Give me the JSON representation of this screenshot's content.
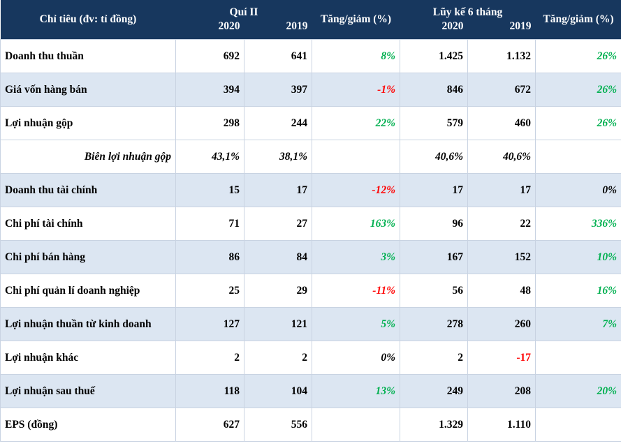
{
  "header": {
    "indicator": "Chỉ tiêu (đv: tỉ đồng)",
    "quarter_group": "Quí II",
    "ytd_group": "Lũy kế 6 tháng",
    "change": "Tăng/giảm (%)",
    "y2020": "2020",
    "y2019": "2019"
  },
  "rows": [
    {
      "label": "Doanh thu thuần",
      "q2020": "692",
      "q2019": "641",
      "qchg": "8%",
      "h2020": "1.425",
      "h2019": "1.132",
      "hchg": "26%"
    },
    {
      "label": "Giá vốn hàng bán",
      "q2020": "394",
      "q2019": "397",
      "qchg": "-1%",
      "h2020": "846",
      "h2019": "672",
      "hchg": "26%"
    },
    {
      "label": "Lợi nhuận gộp",
      "q2020": "298",
      "q2019": "244",
      "qchg": "22%",
      "h2020": "579",
      "h2019": "460",
      "hchg": "26%"
    },
    {
      "label": "Biên lợi nhuận gộp",
      "q2020": "43,1%",
      "q2019": "38,1%",
      "qchg": "",
      "h2020": "40,6%",
      "h2019": "40,6%",
      "hchg": ""
    },
    {
      "label": "Doanh thu tài chính",
      "q2020": "15",
      "q2019": "17",
      "qchg": "-12%",
      "h2020": "17",
      "h2019": "17",
      "hchg": "0%"
    },
    {
      "label": "Chi phí tài chính",
      "q2020": "71",
      "q2019": "27",
      "qchg": "163%",
      "h2020": "96",
      "h2019": "22",
      "hchg": "336%"
    },
    {
      "label": "Chi phí bán hàng",
      "q2020": "86",
      "q2019": "84",
      "qchg": "3%",
      "h2020": "167",
      "h2019": "152",
      "hchg": "10%"
    },
    {
      "label": "Chi phí quản lí doanh nghiệp",
      "q2020": "25",
      "q2019": "29",
      "qchg": "-11%",
      "h2020": "56",
      "h2019": "48",
      "hchg": "16%"
    },
    {
      "label": "Lợi nhuận thuần từ kinh doanh",
      "q2020": "127",
      "q2019": "121",
      "qchg": "5%",
      "h2020": "278",
      "h2019": "260",
      "hchg": "7%"
    },
    {
      "label": "Lợi nhuận khác",
      "q2020": "2",
      "q2019": "2",
      "qchg": "0%",
      "h2020": "2",
      "h2019": "-17",
      "hchg": ""
    },
    {
      "label": "Lợi nhuận sau thuế",
      "q2020": "118",
      "q2019": "104",
      "qchg": "13%",
      "h2020": "249",
      "h2019": "208",
      "hchg": "20%"
    },
    {
      "label": "EPS (đồng)",
      "q2020": "627",
      "q2019": "556",
      "qchg": "",
      "h2020": "1.329",
      "h2019": "1.110",
      "hchg": ""
    }
  ],
  "colors": {
    "header_bg": "#17375e",
    "alt_row": "#dce6f2",
    "positive": "#00b050",
    "negative": "#ff0000"
  }
}
